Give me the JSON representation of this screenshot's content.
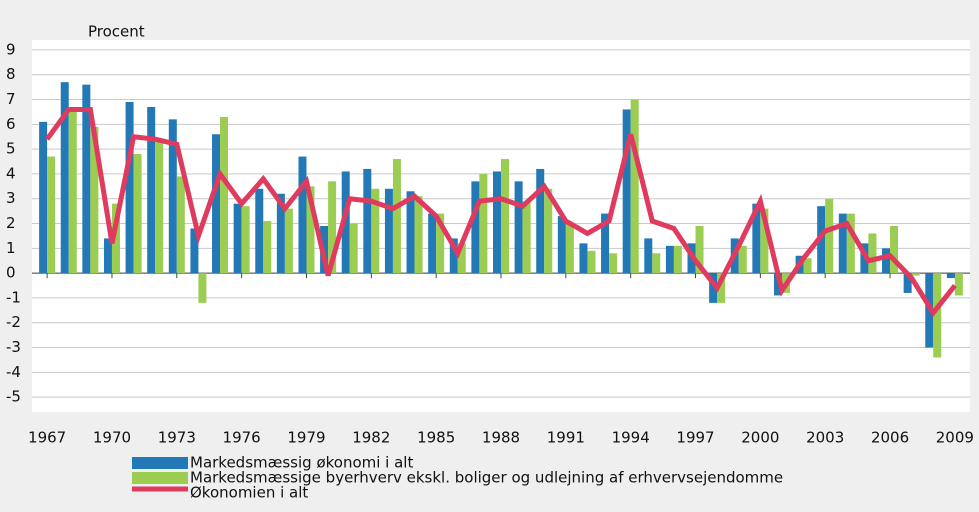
{
  "chart_data": {
    "type": "bar-line",
    "y_label": "Procent",
    "x": [
      1967,
      1968,
      1969,
      1970,
      1971,
      1972,
      1973,
      1974,
      1975,
      1976,
      1977,
      1978,
      1979,
      1980,
      1981,
      1982,
      1983,
      1984,
      1985,
      1986,
      1987,
      1988,
      1989,
      1990,
      1991,
      1992,
      1993,
      1994,
      1995,
      1996,
      1997,
      1998,
      1999,
      2000,
      2001,
      2002,
      2003,
      2004,
      2005,
      2006,
      2007,
      2008,
      2009
    ],
    "xlim": [
      1966.3,
      2009.7
    ],
    "xticks": [
      1967,
      1970,
      1973,
      1976,
      1979,
      1982,
      1985,
      1988,
      1991,
      1994,
      1997,
      2000,
      2003,
      2006,
      2009
    ],
    "ylim": [
      -5.6,
      9.4
    ],
    "yticks": [
      9,
      8,
      7,
      6,
      5,
      4,
      3,
      2,
      1,
      0,
      -1,
      -2,
      -3,
      -4,
      -5
    ],
    "grid": true,
    "series": [
      {
        "name": "Markedsmæssig økonomi i alt",
        "kind": "bar",
        "color": "#2379b5",
        "values": [
          6.1,
          7.7,
          7.6,
          1.4,
          6.9,
          6.7,
          6.2,
          1.8,
          5.6,
          2.8,
          3.4,
          3.2,
          4.7,
          1.9,
          4.1,
          4.2,
          3.4,
          3.3,
          2.4,
          1.4,
          3.7,
          4.1,
          3.7,
          4.2,
          2.3,
          1.2,
          2.4,
          6.6,
          1.4,
          1.1,
          1.2,
          -1.2,
          1.4,
          2.8,
          -0.9,
          0.7,
          2.7,
          2.4,
          1.2,
          1.0,
          -0.8,
          -3.0,
          -0.2
        ]
      },
      {
        "name": "Markedsmæssige byerhverv ekskl. boliger og udlejning af erhvervsejendomme",
        "kind": "bar",
        "color": "#9bcd52",
        "values": [
          4.7,
          6.5,
          5.9,
          2.8,
          4.8,
          5.4,
          3.9,
          -1.2,
          6.3,
          2.7,
          2.1,
          2.6,
          3.5,
          3.7,
          2.0,
          3.4,
          4.6,
          3.1,
          2.4,
          1.2,
          4.0,
          4.6,
          2.9,
          3.4,
          2.0,
          0.9,
          0.8,
          7.0,
          0.8,
          1.1,
          1.9,
          -1.2,
          1.1,
          2.6,
          -0.8,
          0.6,
          3.0,
          2.4,
          1.6,
          1.9,
          -0.1,
          -3.4,
          -0.9
        ]
      },
      {
        "name": "Økonomien i alt",
        "kind": "line",
        "color": "#e03a5f",
        "values": [
          5.4,
          6.6,
          6.6,
          1.2,
          5.5,
          5.4,
          5.2,
          1.5,
          4.0,
          2.8,
          3.8,
          2.6,
          3.7,
          -0.1,
          3.0,
          2.9,
          2.6,
          3.1,
          2.3,
          0.8,
          2.9,
          3.0,
          2.7,
          3.5,
          2.1,
          1.6,
          2.1,
          5.6,
          2.1,
          1.8,
          0.5,
          -0.6,
          1.1,
          2.9,
          -0.7,
          0.6,
          1.7,
          2.0,
          0.5,
          0.7,
          -0.2,
          -1.6,
          -0.5
        ]
      }
    ]
  }
}
